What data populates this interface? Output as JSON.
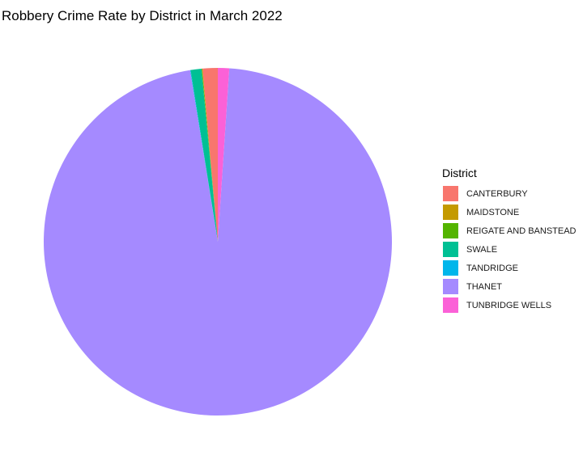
{
  "chart_data": {
    "type": "pie",
    "title": "Robbery Crime Rate by District in March 2022",
    "legend_title": "District",
    "legend_position": "right",
    "categories": [
      "CANTERBURY",
      "MAIDSTONE",
      "REIGATE AND BANSTEAD",
      "SWALE",
      "TANDRIDGE",
      "THANET",
      "TUNBRIDGE WELLS"
    ],
    "values": [
      1.4,
      0.05,
      0.05,
      1.0,
      0.05,
      96.4,
      1.05
    ],
    "colors": [
      "#F8766D",
      "#C49A00",
      "#53B400",
      "#00C094",
      "#00B6EB",
      "#A58AFF",
      "#FB61D7"
    ]
  }
}
